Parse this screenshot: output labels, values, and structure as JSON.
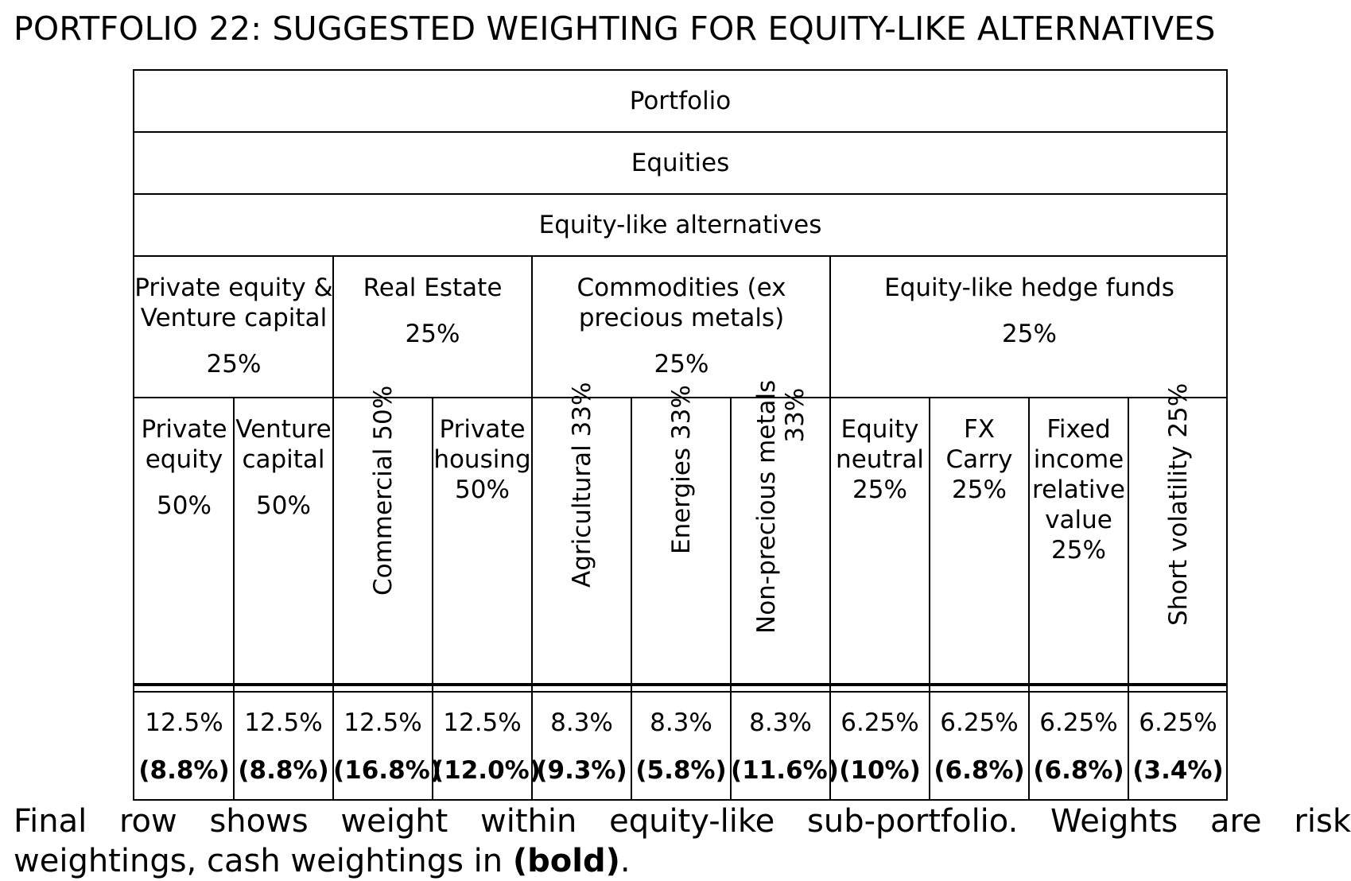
{
  "title": "PORTFOLIO 22: SUGGESTED WEIGHTING FOR EQUITY-LIKE ALTERNATIVES",
  "levels": {
    "portfolio": "Portfolio",
    "equities": "Equities",
    "alternatives": "Equity-like alternatives"
  },
  "groups": [
    {
      "label_line1": "Private equity &",
      "label_line2": "Venture capital",
      "pct": "25%"
    },
    {
      "label_line1": "Real Estate",
      "label_line2": "",
      "pct": "25%"
    },
    {
      "label_line1": "Commodities (ex",
      "label_line2": "precious metals)",
      "pct": "25%"
    },
    {
      "label_line1": "Equity-like hedge funds",
      "label_line2": "",
      "pct": "25%"
    }
  ],
  "leaves": [
    {
      "line1": "Private",
      "line2": "equity",
      "line3": "50%",
      "risk": "12.5%",
      "cash": "(8.8%)"
    },
    {
      "line1": "Venture",
      "line2": "capital",
      "line3": "50%",
      "risk": "12.5%",
      "cash": "(8.8%)"
    },
    {
      "rotated": "Commercial 50%",
      "risk": "12.5%",
      "cash": "(16.8%)"
    },
    {
      "line1": "Private",
      "line2": "housing",
      "line3": "50%",
      "risk": "12.5%",
      "cash": "(12.0%)"
    },
    {
      "rotated": "Agricultural 33%",
      "risk": "8.3%",
      "cash": "(9.3%)"
    },
    {
      "rotated": "Energies 33%",
      "risk": "8.3%",
      "cash": "(5.8%)"
    },
    {
      "rotated_line1": "Non-precious metals",
      "rotated_line2": "33%",
      "risk": "8.3%",
      "cash": "(11.6%)"
    },
    {
      "line1": "Equity",
      "line2": "neutral",
      "line3": "25%",
      "risk": "6.25%",
      "cash": "(10%)"
    },
    {
      "line1": "FX",
      "line2": "Carry",
      "line3": "25%",
      "risk": "6.25%",
      "cash": "(6.8%)"
    },
    {
      "line1": "Fixed",
      "line2": "income",
      "line3": "relative",
      "line4": "value",
      "line5": "25%",
      "risk": "6.25%",
      "cash": "(6.8%)"
    },
    {
      "rotated": "Short volatility 25%",
      "risk": "6.25%",
      "cash": "(3.4%)"
    }
  ],
  "footnote": {
    "line1": "Final row shows weight within equity-like sub-portfolio. Weights are risk",
    "line2_prefix": "weightings, cash weightings in ",
    "line2_bold": "(bold)",
    "line2_suffix": "."
  }
}
